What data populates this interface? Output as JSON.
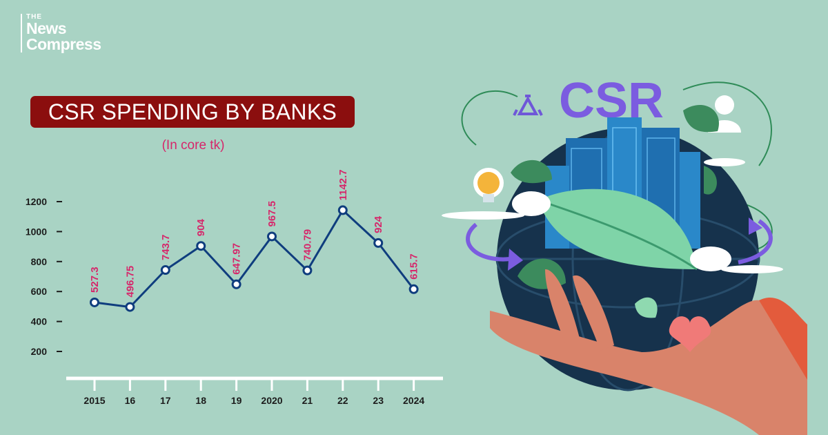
{
  "brand": {
    "line0": "THE",
    "line1": "News",
    "line2": "Compress"
  },
  "art": {
    "csr_text": "CSR"
  },
  "colors": {
    "line": "#0f3d7e",
    "label": "#d6266a",
    "title_bg": "#8b0e0e",
    "background": "#a9d3c4"
  },
  "chart_data": {
    "type": "line",
    "title": "CSR SPENDING BY BANKS",
    "subtitle": "(In core tk)",
    "categories": [
      "2015",
      "16",
      "17",
      "18",
      "19",
      "2020",
      "21",
      "22",
      "23",
      "2024"
    ],
    "values": [
      527.3,
      496.75,
      743.7,
      904,
      647.97,
      967.5,
      740.79,
      1142.7,
      924,
      615.7
    ],
    "labels": [
      "527.3",
      "496.75",
      "743.7",
      "904",
      "647.97",
      "967.5",
      "740.79",
      "1142.7",
      "924",
      "615.7"
    ],
    "yticks": [
      "1200",
      "1000",
      "800",
      "600",
      "400",
      "200"
    ],
    "ylim": [
      0,
      1200
    ],
    "xlabel": "",
    "ylabel": "",
    "grid": false,
    "legend": "none"
  }
}
